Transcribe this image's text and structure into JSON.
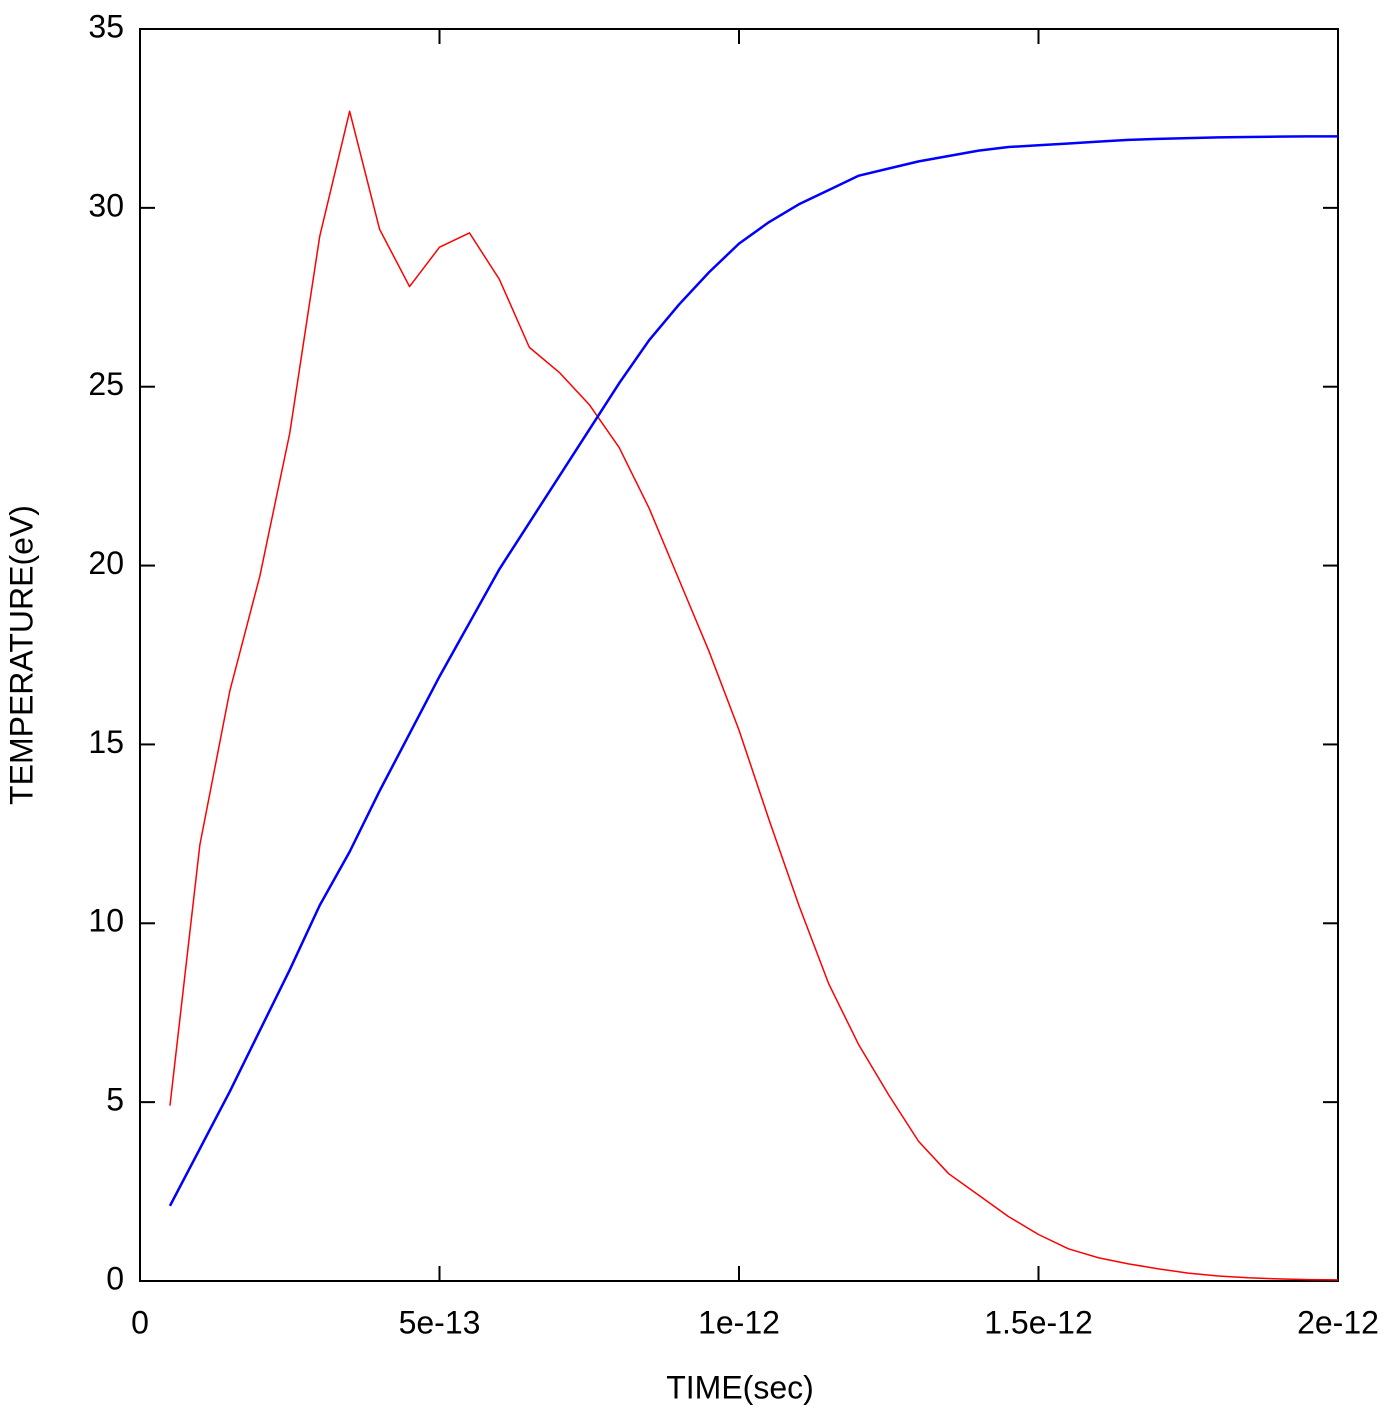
{
  "chart_data": {
    "type": "line",
    "xlabel": "TIME(sec)",
    "ylabel": "TEMPERATURE(eV)",
    "x": [
      5e-14,
      1e-13,
      1.5e-13,
      2e-13,
      2.5e-13,
      3e-13,
      3.5e-13,
      4e-13,
      4.5e-13,
      5e-13,
      5.5e-13,
      6e-13,
      6.5e-13,
      7e-13,
      7.5e-13,
      8e-13,
      8.5e-13,
      9e-13,
      9.5e-13,
      1e-12,
      1.05e-12,
      1.1e-12,
      1.15e-12,
      1.2e-12,
      1.25e-12,
      1.3e-12,
      1.35e-12,
      1.4e-12,
      1.45e-12,
      1.5e-12,
      1.55e-12,
      1.6e-12,
      1.65e-12,
      1.7e-12,
      1.75e-12,
      1.8e-12,
      1.85e-12,
      1.9e-12,
      1.95e-12,
      2e-12
    ],
    "series": [
      {
        "color": "#ff0000",
        "width": 1.5,
        "values": [
          4.9,
          12.2,
          16.5,
          19.7,
          23.7,
          29.2,
          32.7,
          29.4,
          27.8,
          28.9,
          29.3,
          28.0,
          26.1,
          25.4,
          24.5,
          23.3,
          21.6,
          19.6,
          17.6,
          15.4,
          12.9,
          10.5,
          8.3,
          6.6,
          5.2,
          3.9,
          3.0,
          2.4,
          1.8,
          1.3,
          0.9,
          0.65,
          0.48,
          0.34,
          0.22,
          0.14,
          0.09,
          0.06,
          0.04,
          0.03
        ]
      },
      {
        "color": "#0000ff",
        "width": 2.5,
        "values": [
          2.1,
          3.7,
          5.3,
          7.0,
          8.7,
          10.5,
          12.0,
          13.7,
          15.3,
          16.9,
          18.4,
          19.9,
          21.2,
          22.5,
          23.8,
          25.1,
          26.3,
          27.3,
          28.2,
          29.0,
          29.6,
          30.1,
          30.5,
          30.9,
          31.1,
          31.3,
          31.45,
          31.6,
          31.7,
          31.75,
          31.8,
          31.85,
          31.9,
          31.93,
          31.95,
          31.97,
          31.98,
          31.99,
          32.0,
          32.0
        ]
      }
    ],
    "xlim": [
      0,
      2e-12
    ],
    "xticks": [
      0,
      {
        "value": 5e-13,
        "label": "5e-13"
      },
      {
        "value": 1e-12,
        "label": "1e-12"
      },
      {
        "value": 1.5e-12,
        "label": "1.5e-12"
      },
      {
        "value": 2e-12,
        "label": "2e-12"
      }
    ],
    "ylim": [
      0,
      35
    ],
    "yticks": [
      0,
      5,
      10,
      15,
      20,
      25,
      30,
      35
    ],
    "grid": false
  }
}
